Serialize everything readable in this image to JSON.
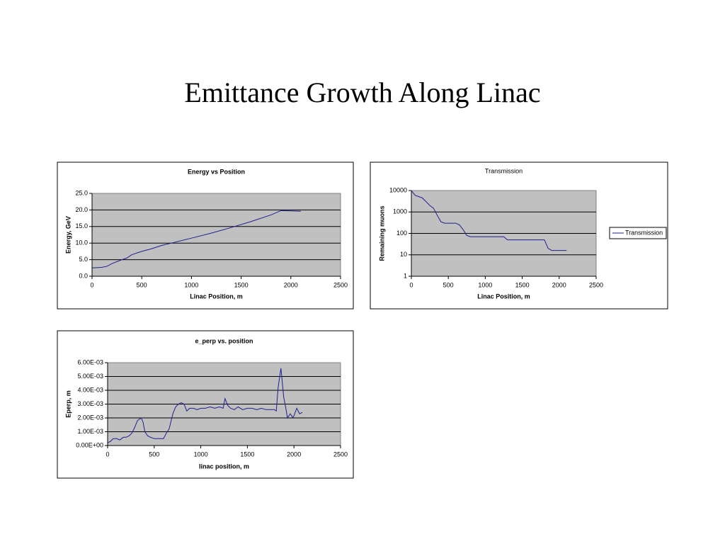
{
  "title": "Emittance Growth Along Linac",
  "chart_data": [
    {
      "type": "line",
      "title": "Energy vs Position",
      "xlabel": "Linac Position, m",
      "ylabel": "Energy, GeV",
      "x": [
        0,
        100,
        150,
        200,
        300,
        350,
        400,
        500,
        600,
        700,
        800,
        1000,
        1200,
        1400,
        1600,
        1800,
        1900,
        2000,
        2100
      ],
      "series": [
        {
          "color": "#1f1f8f",
          "values": [
            2.5,
            2.7,
            3.0,
            3.8,
            5.0,
            5.5,
            6.5,
            7.5,
            8.3,
            9.3,
            10.0,
            11.5,
            13.0,
            14.7,
            16.5,
            18.5,
            19.8,
            19.7,
            19.6
          ]
        }
      ],
      "xlim": [
        0,
        2500
      ],
      "xticks": [
        0,
        500,
        1000,
        1500,
        2000,
        2500
      ],
      "ylim": [
        0,
        25
      ],
      "yticks": [
        {
          "value": 0,
          "label": "0.0"
        },
        {
          "value": 5,
          "label": "5.0"
        },
        {
          "value": 10,
          "label": "10.0"
        },
        {
          "value": 15,
          "label": "15.0"
        },
        {
          "value": 20,
          "label": "20.0"
        },
        {
          "value": 25,
          "label": "25.0"
        }
      ],
      "grid": true
    },
    {
      "type": "line",
      "title": "Transmission",
      "xlabel": "Linac Position, m",
      "ylabel": "Remaining muons",
      "x": [
        0,
        50,
        150,
        200,
        250,
        300,
        350,
        400,
        450,
        600,
        650,
        700,
        750,
        800,
        1000,
        1200,
        1250,
        1300,
        1500,
        1800,
        1850,
        1900,
        2100
      ],
      "series": [
        {
          "name": "Transmission",
          "color": "#1f1f8f",
          "values": [
            10000,
            6000,
            4500,
            3000,
            2000,
            1500,
            700,
            350,
            300,
            300,
            250,
            150,
            80,
            70,
            70,
            70,
            70,
            50,
            50,
            50,
            20,
            16,
            16
          ]
        }
      ],
      "xlim": [
        0,
        2500
      ],
      "xticks": [
        0,
        500,
        1000,
        1500,
        2000,
        2500
      ],
      "ylim": [
        1,
        10000
      ],
      "yticks": [
        1,
        10,
        100,
        1000,
        10000
      ],
      "log_y": true,
      "grid": true,
      "legend": "right"
    },
    {
      "type": "line",
      "title": "e_perp vs. position",
      "xlabel": "linac position, m",
      "ylabel": "Eperp, m",
      "x": [
        0,
        30,
        60,
        100,
        130,
        170,
        200,
        230,
        260,
        290,
        320,
        360,
        380,
        400,
        430,
        460,
        500,
        550,
        600,
        630,
        660,
        700,
        730,
        760,
        790,
        820,
        850,
        880,
        920,
        960,
        1000,
        1050,
        1100,
        1150,
        1200,
        1240,
        1260,
        1290,
        1320,
        1360,
        1400,
        1450,
        1500,
        1550,
        1600,
        1650,
        1700,
        1750,
        1790,
        1810,
        1830,
        1860,
        1890,
        1910,
        1930,
        1960,
        1990,
        2030,
        2060,
        2090
      ],
      "series": [
        {
          "color": "#1f1f8f",
          "values": [
            0.0002,
            0.0003,
            0.0005,
            0.0005,
            0.0004,
            0.0006,
            0.0006,
            0.0007,
            0.0009,
            0.0013,
            0.0018,
            0.002,
            0.0017,
            0.001,
            0.0007,
            0.0006,
            0.0005,
            0.0005,
            0.0005,
            0.0009,
            0.0012,
            0.0023,
            0.0028,
            0.003,
            0.0031,
            0.003,
            0.0025,
            0.0027,
            0.0027,
            0.0026,
            0.0027,
            0.0027,
            0.0028,
            0.0027,
            0.0028,
            0.0027,
            0.0034,
            0.0029,
            0.0027,
            0.0026,
            0.0028,
            0.0026,
            0.0027,
            0.0027,
            0.0026,
            0.0027,
            0.0026,
            0.0026,
            0.0026,
            0.0025,
            0.0042,
            0.0056,
            0.0035,
            0.0028,
            0.002,
            0.0023,
            0.002,
            0.0027,
            0.0023,
            0.0024
          ]
        }
      ],
      "xlim": [
        0,
        2500
      ],
      "xticks": [
        0,
        500,
        1000,
        1500,
        2000,
        2500
      ],
      "ylim": [
        0,
        0.006
      ],
      "yticks": [
        {
          "value": 0,
          "label": "0.00E+00"
        },
        {
          "value": 0.001,
          "label": "1.00E-03"
        },
        {
          "value": 0.002,
          "label": "2.00E-03"
        },
        {
          "value": 0.003,
          "label": "3.00E-03"
        },
        {
          "value": 0.004,
          "label": "4.00E-03"
        },
        {
          "value": 0.005,
          "label": "5.00E-03"
        },
        {
          "value": 0.006,
          "label": "6.00E-03"
        }
      ],
      "grid": true
    }
  ]
}
